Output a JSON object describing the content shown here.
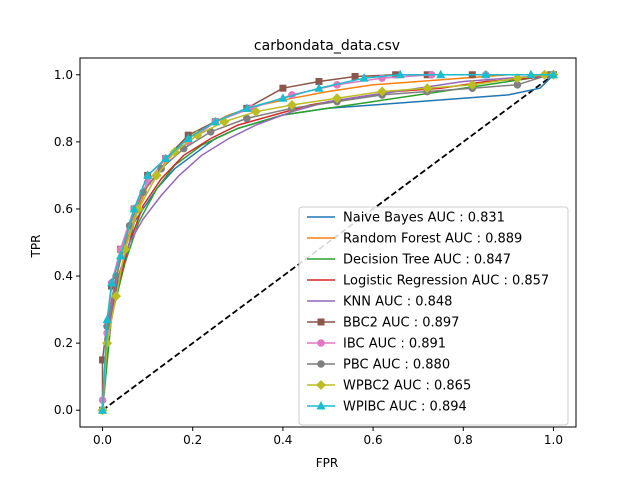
{
  "chart_data": {
    "type": "line",
    "title": "carbondata_data.csv",
    "xlabel": "FPR",
    "ylabel": "TPR",
    "xlim": [
      -0.05,
      1.05
    ],
    "ylim": [
      -0.05,
      1.05
    ],
    "xticks": [
      "0.0",
      "0.2",
      "0.4",
      "0.6",
      "0.8",
      "1.0"
    ],
    "yticks": [
      "0.0",
      "0.2",
      "0.4",
      "0.6",
      "0.8",
      "1.0"
    ],
    "grid": false,
    "legend_position": "lower-right",
    "diagonal": {
      "x": [
        0,
        1
      ],
      "y": [
        0,
        1
      ],
      "color": "#000000",
      "style": "dashed"
    },
    "series": [
      {
        "name": "Naive Bayes AUC : 0.831",
        "color": "#1f77b4",
        "marker": "none",
        "x": [
          0,
          0.01,
          0.02,
          0.04,
          0.06,
          0.07,
          0.09,
          0.12,
          0.16,
          0.2,
          0.25,
          0.3,
          0.35,
          0.4,
          0.5,
          0.6,
          0.7,
          0.8,
          0.9,
          0.97,
          1.0
        ],
        "y": [
          0,
          0.15,
          0.3,
          0.42,
          0.5,
          0.56,
          0.6,
          0.66,
          0.72,
          0.76,
          0.81,
          0.84,
          0.86,
          0.88,
          0.9,
          0.91,
          0.92,
          0.93,
          0.94,
          0.96,
          1.0
        ]
      },
      {
        "name": "Random Forest AUC : 0.889",
        "color": "#ff7f0e",
        "marker": "none",
        "x": [
          0,
          0.01,
          0.02,
          0.04,
          0.07,
          0.1,
          0.14,
          0.18,
          0.22,
          0.28,
          0.35,
          0.42,
          0.5,
          0.6,
          0.7,
          0.8,
          0.9,
          1.0
        ],
        "y": [
          0,
          0.2,
          0.33,
          0.45,
          0.57,
          0.67,
          0.74,
          0.8,
          0.84,
          0.88,
          0.91,
          0.93,
          0.95,
          0.97,
          0.98,
          0.99,
          1.0,
          1.0
        ]
      },
      {
        "name": "Decision Tree AUC : 0.847",
        "color": "#2ca02c",
        "marker": "none",
        "x": [
          0,
          0.02,
          0.05,
          0.08,
          0.12,
          0.16,
          0.22,
          0.3,
          0.4,
          0.5,
          0.6,
          0.7,
          0.8,
          0.9,
          1.0
        ],
        "y": [
          0,
          0.28,
          0.44,
          0.56,
          0.66,
          0.73,
          0.79,
          0.84,
          0.88,
          0.9,
          0.92,
          0.94,
          0.96,
          0.98,
          1.0
        ]
      },
      {
        "name": "Logistic Regression AUC : 0.857",
        "color": "#d62728",
        "marker": "none",
        "x": [
          0,
          0.01,
          0.03,
          0.06,
          0.09,
          0.13,
          0.18,
          0.24,
          0.3,
          0.38,
          0.46,
          0.55,
          0.65,
          0.75,
          0.85,
          0.95,
          1.0
        ],
        "y": [
          0,
          0.2,
          0.35,
          0.5,
          0.61,
          0.69,
          0.76,
          0.81,
          0.85,
          0.88,
          0.91,
          0.93,
          0.95,
          0.96,
          0.98,
          0.99,
          1.0
        ]
      },
      {
        "name": "KNN AUC : 0.848",
        "color": "#9467bd",
        "marker": "none",
        "x": [
          0,
          0.01,
          0.03,
          0.06,
          0.09,
          0.13,
          0.17,
          0.22,
          0.28,
          0.34,
          0.42,
          0.5,
          0.6,
          0.7,
          0.8,
          0.9,
          1.0
        ],
        "y": [
          0,
          0.22,
          0.38,
          0.5,
          0.57,
          0.64,
          0.7,
          0.76,
          0.81,
          0.85,
          0.89,
          0.92,
          0.94,
          0.96,
          0.98,
          0.99,
          1.0
        ]
      },
      {
        "name": "BBC2 AUC : 0.897",
        "color": "#8c564b",
        "marker": "square",
        "x": [
          0,
          0.0,
          0.02,
          0.04,
          0.07,
          0.1,
          0.14,
          0.19,
          0.25,
          0.32,
          0.4,
          0.48,
          0.56,
          0.65,
          0.72,
          0.82,
          1.0
        ],
        "y": [
          0,
          0.15,
          0.37,
          0.48,
          0.6,
          0.7,
          0.75,
          0.82,
          0.86,
          0.9,
          0.96,
          0.98,
          0.995,
          1.0,
          1.0,
          1.0,
          1.0
        ]
      },
      {
        "name": "IBC AUC : 0.891",
        "color": "#e377c2",
        "marker": "circle",
        "x": [
          0,
          0.0,
          0.01,
          0.02,
          0.04,
          0.07,
          0.1,
          0.14,
          0.19,
          0.25,
          0.33,
          0.42,
          0.52,
          0.62,
          0.73,
          0.85,
          1.0
        ],
        "y": [
          0,
          0.03,
          0.23,
          0.38,
          0.48,
          0.6,
          0.68,
          0.75,
          0.8,
          0.86,
          0.9,
          0.94,
          0.97,
          0.99,
          1.0,
          1.0,
          1.0
        ]
      },
      {
        "name": "PBC AUC : 0.880",
        "color": "#7f7f7f",
        "marker": "circle",
        "x": [
          0,
          0.01,
          0.03,
          0.06,
          0.09,
          0.13,
          0.18,
          0.24,
          0.32,
          0.42,
          0.52,
          0.62,
          0.72,
          0.82,
          0.92,
          0.99,
          1.0
        ],
        "y": [
          0,
          0.25,
          0.4,
          0.55,
          0.65,
          0.72,
          0.78,
          0.83,
          0.87,
          0.9,
          0.92,
          0.94,
          0.95,
          0.96,
          0.97,
          1.0,
          1.0
        ]
      },
      {
        "name": "WPBC2 AUC : 0.865",
        "color": "#bcbd22",
        "marker": "diamond",
        "x": [
          0,
          0.01,
          0.03,
          0.05,
          0.08,
          0.12,
          0.16,
          0.21,
          0.27,
          0.34,
          0.42,
          0.52,
          0.62,
          0.72,
          0.82,
          0.92,
          0.98,
          1.0
        ],
        "y": [
          0,
          0.2,
          0.34,
          0.48,
          0.6,
          0.7,
          0.77,
          0.82,
          0.86,
          0.89,
          0.91,
          0.93,
          0.95,
          0.96,
          0.97,
          0.99,
          1.0,
          1.0
        ]
      },
      {
        "name": "WPIBC AUC : 0.894",
        "color": "#17becf",
        "marker": "triangle",
        "x": [
          0,
          0.01,
          0.02,
          0.04,
          0.07,
          0.1,
          0.14,
          0.19,
          0.25,
          0.32,
          0.4,
          0.48,
          0.58,
          0.66,
          0.75,
          0.85,
          0.95,
          1.0
        ],
        "y": [
          0,
          0.27,
          0.38,
          0.46,
          0.6,
          0.7,
          0.75,
          0.81,
          0.86,
          0.9,
          0.93,
          0.96,
          0.99,
          1.0,
          1.0,
          1.0,
          1.0,
          1.0
        ]
      }
    ]
  }
}
